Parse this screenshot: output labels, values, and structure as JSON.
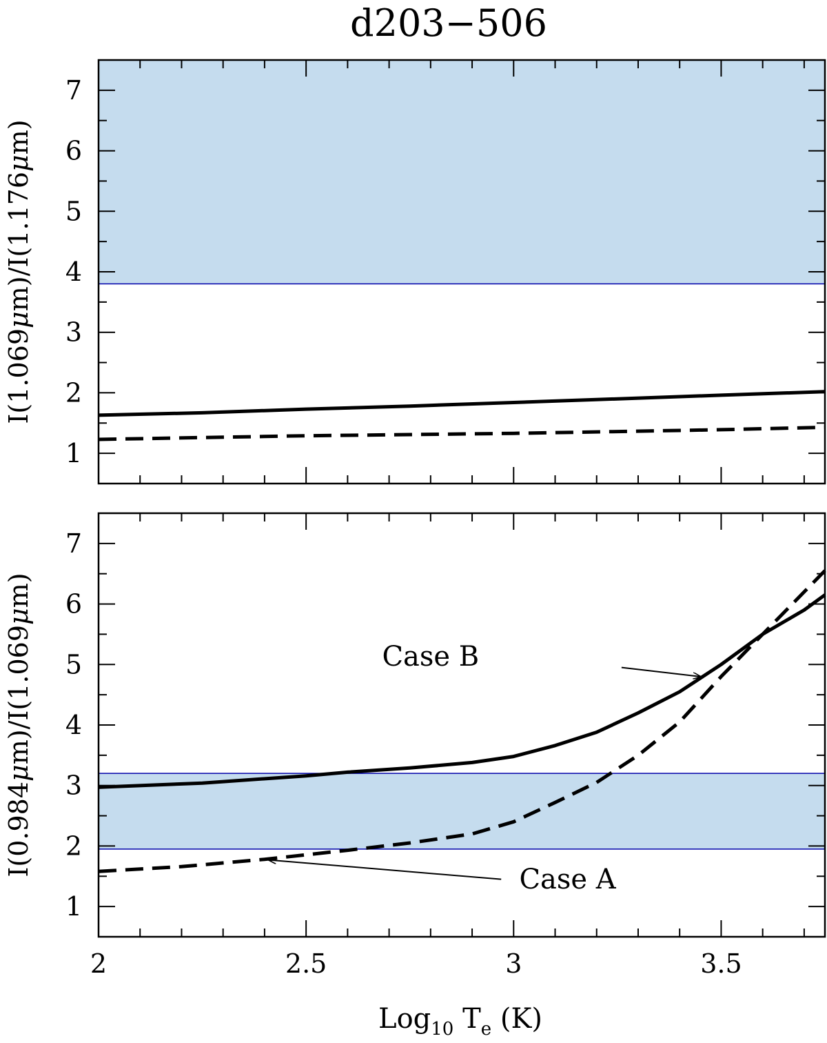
{
  "title": "d203−506",
  "xlabel": {
    "prefix": "Log",
    "sub1": "10",
    "mid": " T",
    "sub2": "e",
    "suffix": " (K)"
  },
  "colors": {
    "band_fill": "#c5dcee",
    "band_edge": "#0000aa",
    "line": "#000000"
  },
  "chart_data": [
    {
      "type": "line",
      "title": "d203−506",
      "xlabel": "Log10 Te (K)",
      "ylabel": "I(1.069μm)/I(1.176μm)",
      "ylabel_parts": [
        "I(1.069",
        "μ",
        "m)/I(1.176",
        "μ",
        "m)"
      ],
      "xlim": [
        2,
        3.75
      ],
      "ylim": [
        0.5,
        7.5
      ],
      "xticks": [
        2,
        2.5,
        3,
        3.5
      ],
      "xtick_labels": [
        "",
        "",
        "",
        ""
      ],
      "yticks": [
        1,
        2,
        3,
        4,
        5,
        6,
        7
      ],
      "ytick_labels": [
        "1",
        "2",
        "3",
        "4",
        "5",
        "6",
        "7"
      ],
      "band": {
        "lower": 3.8,
        "upper": 7.5
      },
      "series": [
        {
          "style": "solid",
          "x": [
            2.0,
            2.25,
            2.5,
            2.75,
            3.0,
            3.25,
            3.5,
            3.75
          ],
          "y": [
            1.63,
            1.67,
            1.73,
            1.78,
            1.84,
            1.9,
            1.96,
            2.02
          ]
        },
        {
          "style": "dashed",
          "x": [
            2.0,
            2.25,
            2.5,
            2.75,
            3.0,
            3.25,
            3.5,
            3.75
          ],
          "y": [
            1.23,
            1.26,
            1.29,
            1.31,
            1.33,
            1.36,
            1.39,
            1.43
          ]
        }
      ],
      "annotations": []
    },
    {
      "type": "line",
      "ylabel": "I(0.984μm)/I(1.069μm)",
      "ylabel_parts": [
        "I(0.984",
        "μ",
        "m)/I(1.069",
        "μ",
        "m)"
      ],
      "xlim": [
        2,
        3.75
      ],
      "ylim": [
        0.5,
        7.5
      ],
      "xticks": [
        2,
        2.5,
        3,
        3.5
      ],
      "xtick_labels": [
        "2",
        "2.5",
        "3",
        "3.5"
      ],
      "yticks": [
        1,
        2,
        3,
        4,
        5,
        6,
        7
      ],
      "ytick_labels": [
        "1",
        "2",
        "3",
        "4",
        "5",
        "6",
        "7"
      ],
      "band": {
        "lower": 1.95,
        "upper": 3.2
      },
      "series": [
        {
          "name": "Case B",
          "style": "solid",
          "x": [
            2.0,
            2.25,
            2.5,
            2.6,
            2.75,
            2.9,
            3.0,
            3.1,
            3.2,
            3.3,
            3.4,
            3.5,
            3.6,
            3.7,
            3.75
          ],
          "y": [
            2.97,
            3.04,
            3.16,
            3.22,
            3.29,
            3.38,
            3.48,
            3.66,
            3.88,
            4.2,
            4.55,
            5.0,
            5.5,
            5.9,
            6.15
          ]
        },
        {
          "name": "Case A",
          "style": "dashed",
          "x": [
            2.0,
            2.2,
            2.4,
            2.6,
            2.75,
            2.9,
            3.0,
            3.1,
            3.2,
            3.3,
            3.4,
            3.5,
            3.6,
            3.7,
            3.75
          ],
          "y": [
            1.58,
            1.66,
            1.78,
            1.93,
            2.05,
            2.2,
            2.4,
            2.72,
            3.05,
            3.5,
            4.05,
            4.8,
            5.5,
            6.2,
            6.55
          ]
        }
      ],
      "annotations": [
        {
          "text": "Case B",
          "text_at": [
            2.8,
            4.98
          ],
          "arrow_from": [
            3.26,
            4.95
          ],
          "arrow_to": [
            3.45,
            4.8
          ]
        },
        {
          "text": "Case A",
          "text_at": [
            3.13,
            1.3
          ],
          "arrow_from": [
            2.97,
            1.45
          ],
          "arrow_to": [
            2.41,
            1.77
          ]
        }
      ]
    }
  ]
}
